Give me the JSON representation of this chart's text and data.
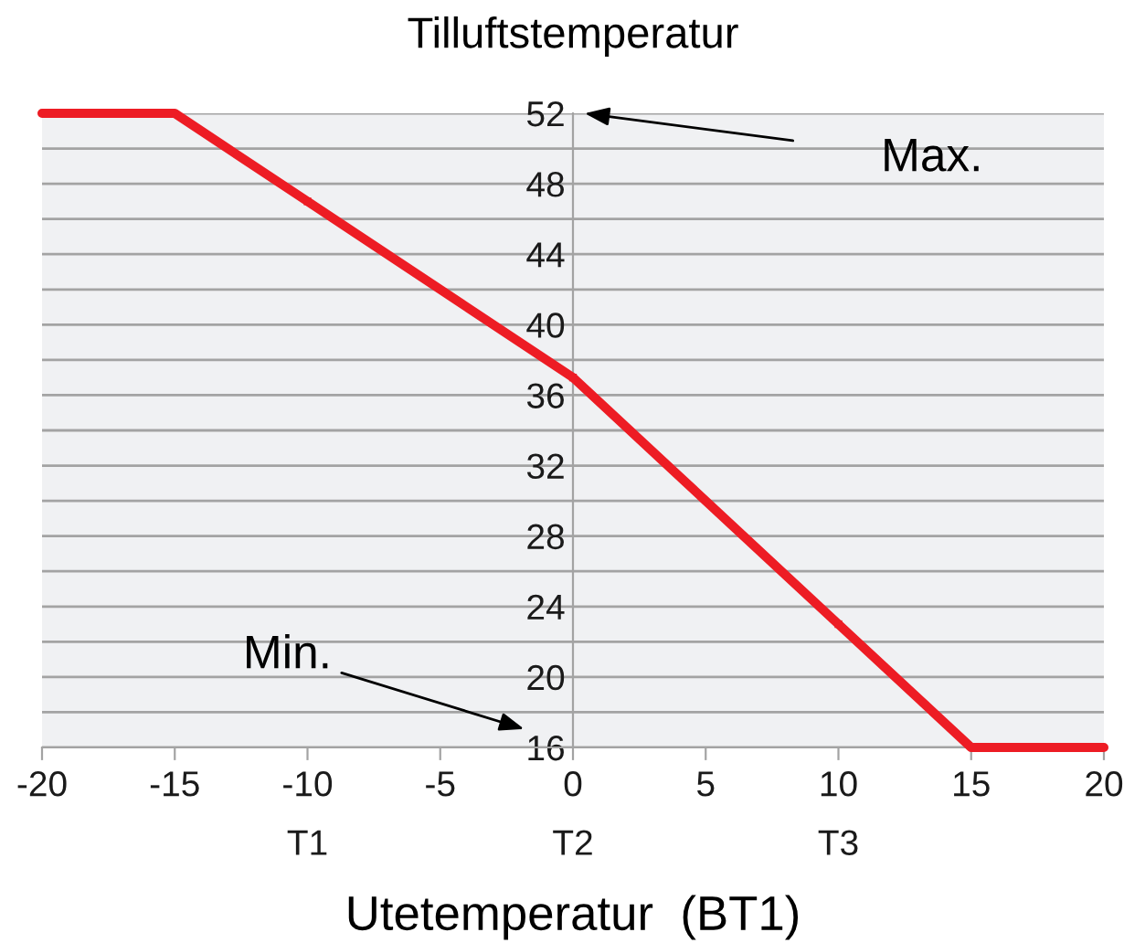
{
  "chart_data": {
    "type": "line",
    "title": "Tilluftstemperatur",
    "xlabel": "Utetemperatur  (BT1)",
    "series": [
      {
        "color": "#ed1c24",
        "x": [
          -20,
          -15,
          -10,
          0,
          10,
          15,
          20
        ],
        "values": [
          52,
          52,
          47,
          37,
          23,
          16,
          16
        ]
      },
      {
        "type": "scatter",
        "color": "#ed1c24",
        "marker": "square",
        "x": [
          -10,
          0,
          10
        ],
        "values": [
          47,
          37,
          23
        ]
      }
    ],
    "xlim": [
      -20,
      20
    ],
    "xticks": [
      -20,
      -15,
      {
        "value": -10,
        "label": "-10\nT1"
      },
      -5,
      {
        "value": 0,
        "label": "0\nT2"
      },
      5,
      {
        "value": 10,
        "label": "10\nT3"
      },
      15,
      20
    ],
    "ylim": [
      16,
      52
    ],
    "yticks": [
      16,
      {
        "value": 18,
        "label": null
      },
      20,
      {
        "value": 22,
        "label": null
      },
      24,
      {
        "value": 26,
        "label": null
      },
      28,
      {
        "value": 30,
        "label": null
      },
      32,
      {
        "value": 34,
        "label": null
      },
      36,
      {
        "value": 38,
        "label": null
      },
      40,
      {
        "value": 42,
        "label": null
      },
      44,
      {
        "value": 46,
        "label": null
      },
      48,
      {
        "value": 50,
        "label": null
      },
      52
    ],
    "grid": "y",
    "line_style": "solid",
    "annotations": [
      "Max.",
      "Min."
    ]
  }
}
